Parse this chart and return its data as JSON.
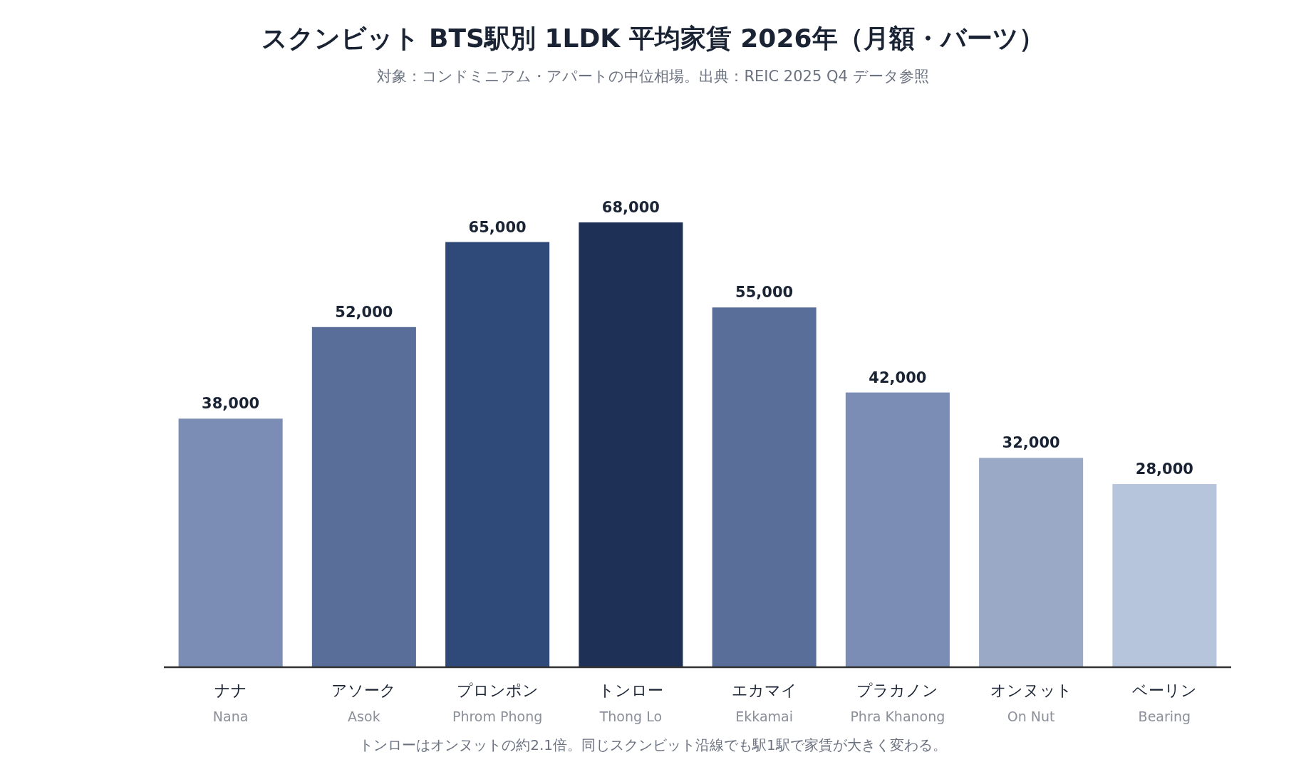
{
  "chart_data": {
    "type": "bar",
    "title": "スクンビット BTS駅別 1LDK 平均家賃 2026年（月額・バーツ）",
    "subtitle": "対象：コンドミニアム・アパートの中位相場。出典：REIC 2025 Q4 データ参照",
    "categories": [
      "ナナ\nNana",
      "アソーク\nAsok",
      "プロンポン\nPhrom Phong",
      "トンロー\nThong Lo",
      "エカマイ\nEkkamai",
      "プラカノン\nPhra Khanong",
      "オンヌット\nOn Nut",
      "ベーリン\nBearing"
    ],
    "values": [
      38000,
      52000,
      65000,
      68000,
      55000,
      42000,
      32000,
      28000
    ],
    "colors": [
      "#7b8db5",
      "#5a6e9a",
      "#2f4a78",
      "#1f3057",
      "#5a6e9a",
      "#7b8db5",
      "#9aa9c6",
      "#b6c4dc"
    ],
    "value_labels": [
      "38,000",
      "52,000",
      "65,000",
      "68,000",
      "55,000",
      "42,000",
      "32,000",
      "28,000"
    ],
    "annotations": [
      "トンローはオンヌットの約2.1倍。同じスクンビット沿線でも駅1駅で家賃が大きく変わる。"
    ]
  }
}
